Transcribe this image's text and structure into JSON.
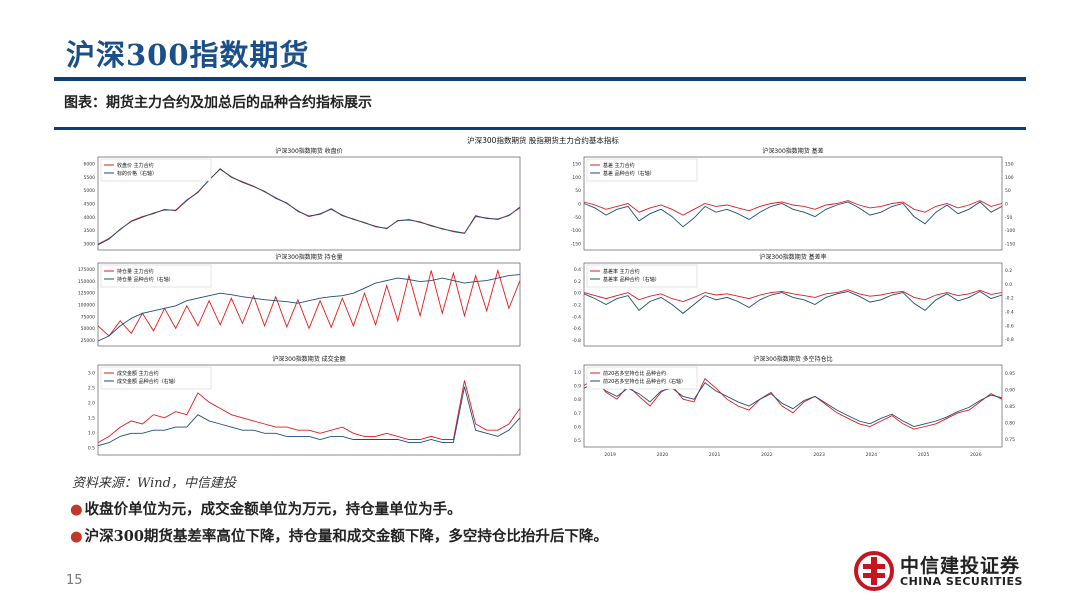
{
  "page": {
    "title": "沪深300指数期货",
    "caption": "图表：期货主力合约及加总后的品种合约指标展示",
    "source": "资料来源：Wind，中信建投",
    "bullets": [
      "收盘价单位为元，成交金额单位为万元，持仓量单位为手。",
      "沪深300期货基差率高位下降，持仓量和成交金额下降，多空持仓比抬升后下降。"
    ],
    "page_number": "15",
    "logo": {
      "cn": "中信建投证券",
      "en": "CHINA SECURITIES"
    },
    "colors": {
      "brand_blue": "#0f3f77",
      "title_blue": "#1b4f8a",
      "bullet_red": "#c0392b",
      "series_red": "#e41a1c",
      "series_blue": "#1f4e79"
    }
  },
  "figure": {
    "suptitle": "沪深300指数期货 股指期货主力合约基本指标"
  },
  "chart_data": [
    {
      "type": "line",
      "title": "沪深300指数期货 收盘价",
      "legend": [
        "收盘价 主力合约",
        "标的价格（右轴）"
      ],
      "legend_position": "upper-left",
      "yticks": [
        "6000",
        "5500",
        "5000",
        "4500",
        "4000",
        "3500",
        "3000"
      ],
      "yticks_right": [],
      "xticks": [],
      "ylim": [
        2900,
        6100
      ],
      "series": [
        {
          "name": "收盘价 主力合约",
          "color": "#e41a1c",
          "values": [
            3100,
            3300,
            3600,
            3900,
            4050,
            4150,
            4300,
            4250,
            4600,
            4900,
            5300,
            5700,
            5400,
            5250,
            5100,
            4900,
            4700,
            4500,
            4250,
            4050,
            4150,
            4300,
            4100,
            3950,
            3850,
            3700,
            3650,
            3900,
            3950,
            3850,
            3750,
            3620,
            3550,
            3480,
            4050,
            4000,
            3950,
            4100,
            4350
          ]
        },
        {
          "name": "标的价格（右轴）",
          "color": "#1f4e79",
          "values": [
            3080,
            3280,
            3620,
            3880,
            4030,
            4170,
            4280,
            4270,
            4620,
            4880,
            5320,
            5680,
            5420,
            5230,
            5080,
            4920,
            4680,
            4520,
            4230,
            4070,
            4130,
            4320,
            4080,
            3970,
            3830,
            3720,
            3630,
            3920,
            3930,
            3870,
            3730,
            3640,
            3530,
            3470,
            4080,
            3980,
            3970,
            4080,
            4380
          ]
        }
      ]
    },
    {
      "type": "line",
      "title": "沪深300指数期货 基差",
      "legend": [
        "基差 主力合约",
        "基差 品种合约（右轴）"
      ],
      "legend_position": "upper-left",
      "yticks": [
        "150",
        "100",
        "50",
        "0",
        "-50",
        "-100",
        "-150"
      ],
      "yticks_right": [
        "150",
        "100",
        "50",
        "0",
        "-50",
        "-100",
        "-150"
      ],
      "xticks": [],
      "ylim": [
        -160,
        160
      ],
      "series": [
        {
          "name": "基差 主力合约",
          "color": "#e41a1c",
          "values": [
            5,
            -5,
            -20,
            -10,
            0,
            -30,
            -15,
            -5,
            -20,
            -40,
            -20,
            0,
            -10,
            -5,
            -15,
            -25,
            -10,
            0,
            5,
            -5,
            -10,
            -20,
            -5,
            0,
            10,
            -5,
            -15,
            -10,
            0,
            5,
            -20,
            -30,
            -10,
            0,
            -15,
            -5,
            10,
            -10,
            0
          ]
        },
        {
          "name": "基差 品种合约（右轴）",
          "color": "#1f4e79",
          "values": [
            0,
            -15,
            -40,
            -20,
            -10,
            -60,
            -35,
            -20,
            -45,
            -80,
            -50,
            -10,
            -30,
            -20,
            -35,
            -55,
            -30,
            -10,
            0,
            -20,
            -30,
            -45,
            -20,
            -5,
            5,
            -15,
            -40,
            -30,
            -10,
            0,
            -45,
            -70,
            -30,
            -5,
            -35,
            -20,
            5,
            -30,
            -10
          ]
        }
      ]
    },
    {
      "type": "line",
      "title": "沪深300指数期货 持仓量",
      "legend": [
        "持仓量 主力合约",
        "持仓量 品种合约（右轴）"
      ],
      "legend_position": "upper-left",
      "yticks": [
        "175000",
        "150000",
        "125000",
        "100000",
        "75000",
        "50000",
        "25000"
      ],
      "yticks_right": [],
      "xticks": [],
      "ylim": [
        20000,
        185000
      ],
      "series": [
        {
          "name": "持仓量 主力合约",
          "color": "#e41a1c",
          "values": [
            60000,
            40000,
            70000,
            45000,
            85000,
            50000,
            95000,
            55000,
            100000,
            60000,
            110000,
            62000,
            115000,
            65000,
            120000,
            60000,
            118000,
            58000,
            112000,
            55000,
            110000,
            57000,
            115000,
            60000,
            125000,
            62000,
            140000,
            70000,
            160000,
            80000,
            170000,
            85000,
            165000,
            80000,
            160000,
            90000,
            170000,
            95000,
            150000
          ]
        },
        {
          "name": "持仓量 品种合约（右轴）",
          "color": "#1f4e79",
          "values": [
            30000,
            40000,
            60000,
            75000,
            85000,
            90000,
            95000,
            100000,
            110000,
            115000,
            120000,
            125000,
            122000,
            118000,
            115000,
            112000,
            110000,
            108000,
            105000,
            110000,
            115000,
            118000,
            120000,
            125000,
            135000,
            145000,
            150000,
            155000,
            152000,
            148000,
            150000,
            155000,
            150000,
            145000,
            148000,
            150000,
            155000,
            160000,
            162000
          ]
        }
      ]
    },
    {
      "type": "line",
      "title": "沪深300指数期货 基差率",
      "legend": [
        "基差率 主力合约",
        "基差率 品种合约（右轴）"
      ],
      "legend_position": "upper-left",
      "yticks": [
        "0.4",
        "0.2",
        "0.0",
        "-0.2",
        "-0.4",
        "-0.6",
        "-0.8"
      ],
      "yticks_right": [
        "0.2",
        "0.0",
        "-0.2",
        "-0.4",
        "-0.6",
        "-0.8"
      ],
      "xticks": [],
      "ylim": [
        -0.9,
        0.5
      ],
      "series": [
        {
          "name": "基差率 主力合约",
          "color": "#e41a1c",
          "values": [
            0.0,
            -0.05,
            -0.1,
            -0.05,
            0.0,
            -0.12,
            -0.06,
            -0.02,
            -0.1,
            -0.15,
            -0.08,
            0.0,
            -0.04,
            -0.02,
            -0.06,
            -0.1,
            -0.04,
            0.0,
            0.02,
            -0.02,
            -0.05,
            -0.08,
            -0.02,
            0.0,
            0.05,
            -0.02,
            -0.06,
            -0.04,
            0.0,
            0.02,
            -0.08,
            -0.12,
            -0.04,
            0.0,
            -0.05,
            -0.02,
            0.04,
            -0.03,
            0.0
          ]
        },
        {
          "name": "基差率 品种合约（右轴）",
          "color": "#1f4e79",
          "values": [
            -0.02,
            -0.1,
            -0.2,
            -0.1,
            -0.05,
            -0.3,
            -0.15,
            -0.08,
            -0.2,
            -0.35,
            -0.2,
            -0.05,
            -0.12,
            -0.08,
            -0.15,
            -0.25,
            -0.12,
            -0.04,
            0.0,
            -0.08,
            -0.12,
            -0.2,
            -0.08,
            -0.02,
            0.02,
            -0.06,
            -0.16,
            -0.12,
            -0.04,
            0.0,
            -0.18,
            -0.3,
            -0.12,
            -0.02,
            -0.14,
            -0.08,
            0.02,
            -0.1,
            -0.04
          ]
        }
      ]
    },
    {
      "type": "line",
      "title": "沪深300指数期货 成交金额",
      "legend": [
        "成交金额 主力合约",
        "成交金额 品种合约（右轴）"
      ],
      "legend_position": "upper-left",
      "yticks": [
        "3.0",
        "2.5",
        "2.0",
        "1.5",
        "1.0",
        "0.5"
      ],
      "yticks_right": [],
      "xticks": [],
      "ylim": [
        0.2,
        3.1
      ],
      "series": [
        {
          "name": "成交金额 主力合约",
          "color": "#e41a1c",
          "values": [
            0.6,
            0.8,
            1.1,
            1.3,
            1.2,
            1.5,
            1.4,
            1.6,
            1.5,
            2.2,
            1.9,
            1.7,
            1.5,
            1.4,
            1.3,
            1.2,
            1.1,
            1.1,
            1.0,
            1.0,
            0.9,
            1.0,
            1.1,
            0.9,
            0.8,
            0.8,
            0.9,
            0.8,
            0.7,
            0.7,
            0.8,
            0.7,
            0.7,
            2.6,
            1.2,
            1.0,
            1.0,
            1.2,
            1.7
          ]
        },
        {
          "name": "成交金额 品种合约（右轴）",
          "color": "#1f4e79",
          "values": [
            0.5,
            0.6,
            0.8,
            0.9,
            0.9,
            1.0,
            1.0,
            1.1,
            1.1,
            1.5,
            1.3,
            1.2,
            1.1,
            1.0,
            1.0,
            0.9,
            0.9,
            0.8,
            0.8,
            0.8,
            0.7,
            0.8,
            0.8,
            0.7,
            0.7,
            0.7,
            0.7,
            0.7,
            0.6,
            0.6,
            0.7,
            0.6,
            0.6,
            2.4,
            1.0,
            0.9,
            0.8,
            1.0,
            1.4
          ]
        }
      ]
    },
    {
      "type": "line",
      "title": "沪深300指数期货 多空持仓比",
      "legend": [
        "前20名多空持仓比 品种合约",
        "前20名多空持仓比 品种合约（右轴）"
      ],
      "legend_position": "upper-left",
      "yticks": [
        "1.0",
        "0.9",
        "0.8",
        "0.7",
        "0.6",
        "0.5"
      ],
      "yticks_right": [
        "0.95",
        "0.90",
        "0.85",
        "0.80",
        "0.75"
      ],
      "xticks": [
        "2019",
        "2020",
        "2021",
        "2022",
        "2023",
        "2024",
        "2025",
        "2026"
      ],
      "ylim": [
        0.45,
        1.05
      ],
      "series": [
        {
          "name": "前20名多空持仓比 品种合约",
          "color": "#e41a1c",
          "values": [
            0.9,
            0.95,
            0.85,
            0.8,
            0.9,
            0.82,
            0.75,
            0.85,
            0.9,
            0.8,
            0.78,
            0.95,
            0.88,
            0.8,
            0.75,
            0.72,
            0.8,
            0.85,
            0.75,
            0.7,
            0.78,
            0.82,
            0.76,
            0.7,
            0.66,
            0.62,
            0.6,
            0.64,
            0.68,
            0.62,
            0.58,
            0.6,
            0.62,
            0.66,
            0.7,
            0.72,
            0.78,
            0.84,
            0.8
          ]
        },
        {
          "name": "前20名多空持仓比 品种合约（右轴）",
          "color": "#1f4e79",
          "values": [
            0.88,
            0.92,
            0.86,
            0.82,
            0.88,
            0.84,
            0.78,
            0.86,
            0.88,
            0.82,
            0.8,
            0.92,
            0.86,
            0.82,
            0.78,
            0.75,
            0.8,
            0.84,
            0.77,
            0.73,
            0.79,
            0.82,
            0.77,
            0.72,
            0.68,
            0.64,
            0.62,
            0.66,
            0.69,
            0.64,
            0.6,
            0.62,
            0.64,
            0.67,
            0.71,
            0.74,
            0.79,
            0.83,
            0.81
          ]
        }
      ]
    }
  ]
}
